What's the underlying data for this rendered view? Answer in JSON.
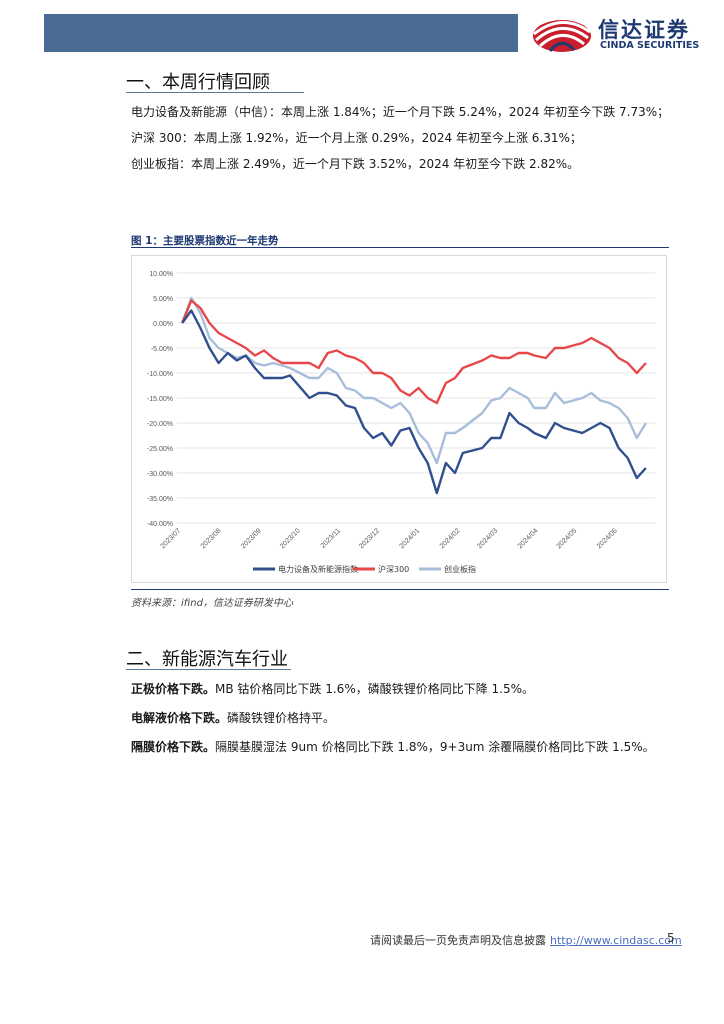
{
  "header": {
    "logo_cn": "信达证券",
    "logo_en": "CINDA SECURITIES"
  },
  "section1": {
    "title": "一、本周行情回顾",
    "lines": [
      "电力设备及新能源（中信）：本周上涨 1.84%；近一个月下跌 5.24%，2024 年初至今下跌 7.73%；",
      "沪深 300：本周上涨 1.92%，近一个月上涨 0.29%，2024 年初至今上涨 6.31%；",
      "创业板指：本周上涨 2.49%，近一个月下跌 3.52%，2024 年初至今下跌 2.82%。"
    ]
  },
  "figure": {
    "caption": "图 1：主要股票指数近一年走势",
    "source": "资料来源：ifind，信达证券研发中心"
  },
  "chart_data": {
    "type": "line",
    "title": "",
    "ylim": [
      -40,
      10
    ],
    "y_ticks": [
      "10.00%",
      "5.00%",
      "0.00%",
      "-5.00%",
      "-10.00%",
      "-15.00%",
      "-20.00%",
      "-25.00%",
      "-30.00%",
      "-35.00%",
      "-40.00%"
    ],
    "x_ticks": [
      "2023/07",
      "2023/08",
      "2023/09",
      "2023/10",
      "2023/11",
      "2023/12",
      "2024/01",
      "2024/02",
      "2024/03",
      "2024/04",
      "2024/05",
      "2024/06"
    ],
    "legend_position": "bottom",
    "grid": true,
    "x": [
      "2023-07-07",
      "2023-07-14",
      "2023-07-21",
      "2023-07-28",
      "2023-08-04",
      "2023-08-11",
      "2023-08-18",
      "2023-08-25",
      "2023-09-01",
      "2023-09-08",
      "2023-09-15",
      "2023-09-22",
      "2023-09-28",
      "2023-10-13",
      "2023-10-20",
      "2023-10-27",
      "2023-11-03",
      "2023-11-10",
      "2023-11-17",
      "2023-11-24",
      "2023-12-01",
      "2023-12-08",
      "2023-12-15",
      "2023-12-22",
      "2023-12-29",
      "2024-01-05",
      "2024-01-12",
      "2024-01-19",
      "2024-01-26",
      "2024-02-02",
      "2024-02-08",
      "2024-02-23",
      "2024-03-01",
      "2024-03-08",
      "2024-03-15",
      "2024-03-22",
      "2024-03-29",
      "2024-04-03",
      "2024-04-12",
      "2024-04-19",
      "2024-04-26",
      "2024-05-10",
      "2024-05-17",
      "2024-05-24",
      "2024-05-31",
      "2024-06-07",
      "2024-06-14",
      "2024-06-21",
      "2024-06-28"
    ],
    "series": [
      {
        "name": "电力设备及新能源指数",
        "color": "#2f4f8f",
        "values": [
          0,
          2.5,
          -1,
          -5,
          -8,
          -6,
          -7.5,
          -6.5,
          -9,
          -11,
          -11,
          -11,
          -10.5,
          -15,
          -14,
          -14,
          -14.5,
          -16.5,
          -17,
          -21,
          -23,
          -22,
          -24.5,
          -21.5,
          -21,
          -25,
          -28,
          -34,
          -28,
          -30,
          -26,
          -25,
          -23,
          -23,
          -18,
          -20,
          -21,
          -22,
          -23,
          -20,
          -21,
          -22,
          -21,
          -20,
          -21,
          -25,
          -27,
          -31,
          -29
        ]
      },
      {
        "name": "沪深300",
        "color": "#e8474a",
        "values": [
          0,
          4.5,
          3,
          0,
          -2,
          -3,
          -4,
          -5,
          -6.5,
          -5.5,
          -7,
          -8,
          -8,
          -8,
          -9,
          -6,
          -5.5,
          -6.5,
          -7,
          -8,
          -10,
          -10,
          -11,
          -13.5,
          -14.5,
          -13,
          -15,
          -16,
          -12,
          -11,
          -9,
          -7.5,
          -6.5,
          -7,
          -7,
          -6,
          -6,
          -6.5,
          -7,
          -5,
          -5,
          -4,
          -3,
          -4,
          -5,
          -7,
          -8,
          -10,
          -8
        ]
      },
      {
        "name": "创业板指",
        "color": "#a7bdd9",
        "values": [
          0,
          5,
          2,
          -3,
          -5,
          -6,
          -7,
          -6.5,
          -8,
          -8.5,
          -8,
          -8.5,
          -9,
          -11,
          -11,
          -9,
          -10,
          -13,
          -13.5,
          -15,
          -15,
          -16,
          -17,
          -16,
          -18,
          -22,
          -24,
          -28,
          -22,
          -22,
          -21,
          -18,
          -15.5,
          -15,
          -13,
          -14,
          -15,
          -17,
          -17,
          -14,
          -16,
          -15,
          -14,
          -15.5,
          -16,
          -17,
          -19,
          -23,
          -20
        ]
      }
    ]
  },
  "section2": {
    "title": "二、新能源汽车行业",
    "items": [
      {
        "bold": "正极价格下跌。",
        "text": "MB 钴价格同比下跌 1.6%，磷酸铁锂价格同比下降 1.5%。"
      },
      {
        "bold": "电解液价格下跌。",
        "text": "磷酸铁锂价格持平。"
      },
      {
        "bold": "隔膜价格下跌。",
        "text": "隔膜基膜湿法 9um 价格同比下跌 1.8%，9+3um 涂覆隔膜价格同比下跌 1.5%。"
      }
    ]
  },
  "footer": {
    "disclaimer": "请阅读最后一页免责声明及信息披露",
    "url": "http://www.cindasc.com",
    "page_number": "5"
  }
}
